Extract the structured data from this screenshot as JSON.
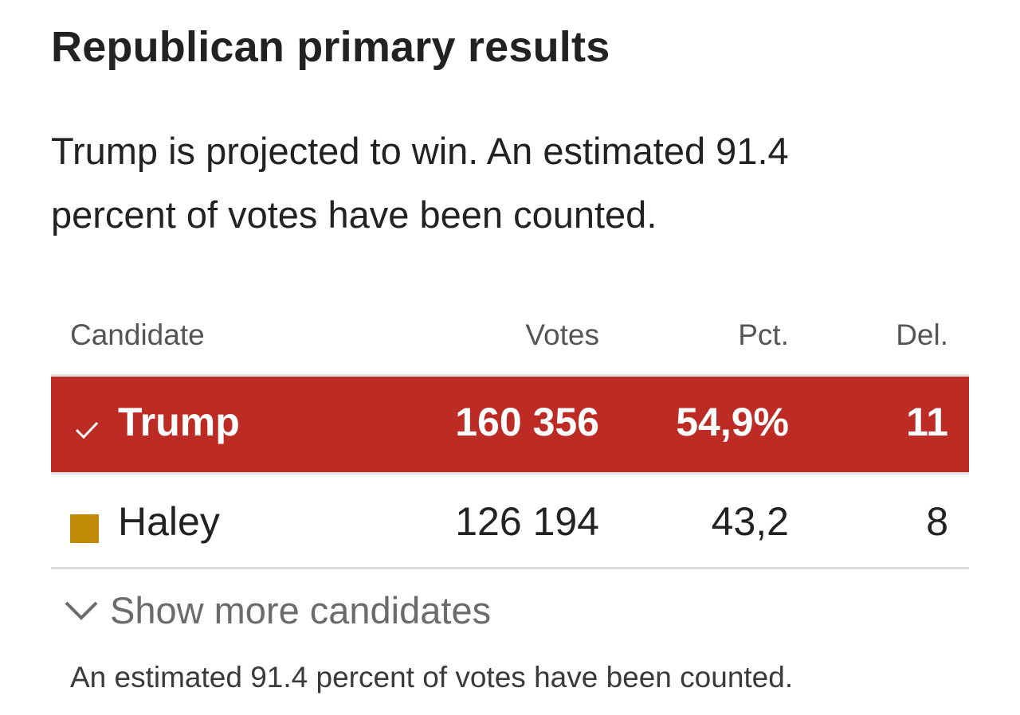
{
  "title": "Republican primary results",
  "summary": "Trump is projected to win. An estimated 91.4 percent of votes have been counted.",
  "table": {
    "headers": {
      "candidate": "Candidate",
      "votes": "Votes",
      "pct": "Pct.",
      "del": "Del."
    },
    "rows": [
      {
        "name": "Trump",
        "votes": "160 356",
        "pct": "54,9%",
        "del": "11",
        "winner": true,
        "color": "#bd2b25"
      },
      {
        "name": "Haley",
        "votes": "126 194",
        "pct": "43,2",
        "del": "8",
        "winner": false,
        "color": "#c18a06"
      }
    ]
  },
  "show_more_label": "Show more candidates",
  "footnote": "An estimated 91.4 percent of votes have been counted.",
  "icons": {
    "winner": "checkmark-icon",
    "expand": "chevron-down-icon",
    "candidate_swatch": "color-swatch-icon"
  }
}
